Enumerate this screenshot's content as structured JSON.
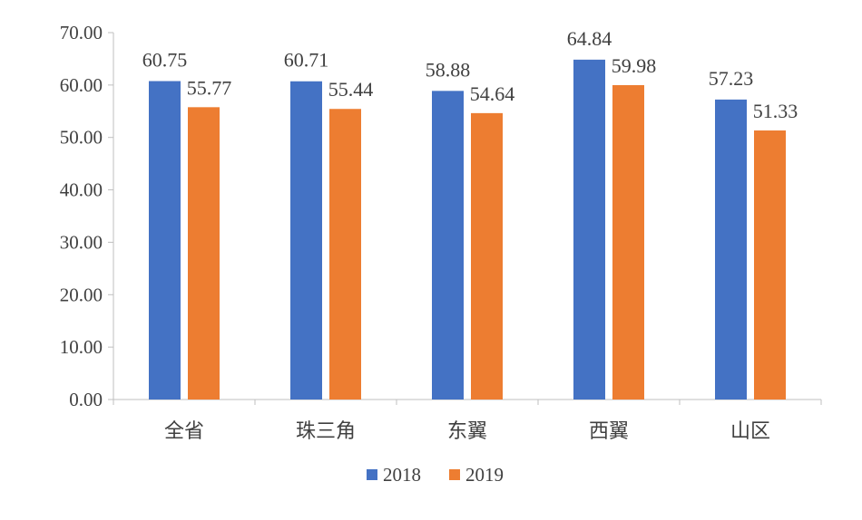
{
  "chart_data": {
    "type": "bar",
    "title": "",
    "xlabel": "",
    "ylabel": "",
    "categories": [
      "全省",
      "珠三角",
      "东翼",
      "西翼",
      "山区"
    ],
    "series": [
      {
        "name": "2018",
        "color": "#4472C4",
        "values": [
          60.75,
          60.71,
          58.88,
          64.84,
          57.23
        ]
      },
      {
        "name": "2019",
        "color": "#ED7D31",
        "values": [
          55.77,
          55.44,
          54.64,
          59.98,
          51.33
        ]
      }
    ],
    "data_labels": [
      [
        "60.75",
        "60.71",
        "58.88",
        "64.84",
        "57.23"
      ],
      [
        "55.77",
        "55.44",
        "54.64",
        "59.98",
        "51.33"
      ]
    ],
    "ylim": [
      0,
      70
    ],
    "ytick_step": 10,
    "ytick_labels": [
      "0.00",
      "10.00",
      "20.00",
      "30.00",
      "40.00",
      "50.00",
      "60.00",
      "70.00"
    ],
    "grid": false,
    "legend": "bottom-center"
  }
}
